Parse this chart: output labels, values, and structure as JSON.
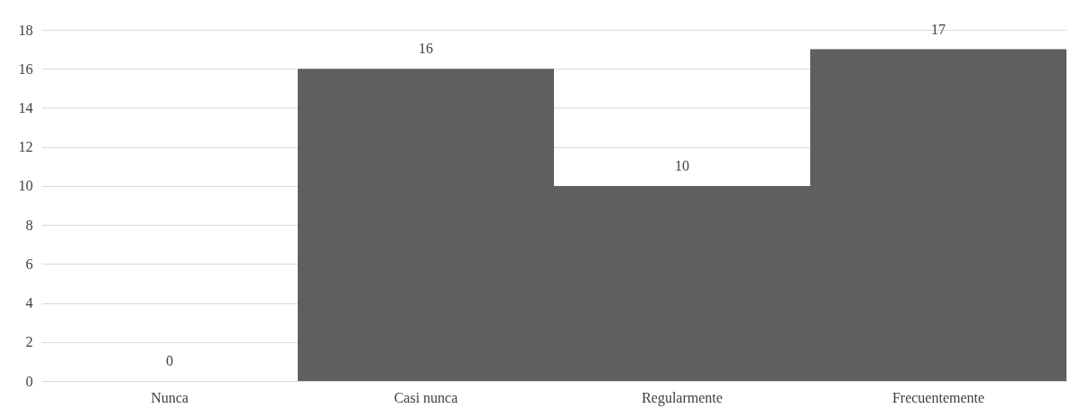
{
  "chart_data": {
    "type": "bar",
    "categories": [
      "Nunca",
      "Casi nunca",
      "Regularmente",
      "Frecuentemente"
    ],
    "values": [
      0,
      16,
      10,
      17
    ],
    "color": "#5f5f5f",
    "ylim": [
      0,
      18
    ],
    "yticks": [
      0,
      2,
      4,
      6,
      8,
      10,
      12,
      14,
      16,
      18
    ],
    "grid": "y",
    "data_labels": true
  }
}
